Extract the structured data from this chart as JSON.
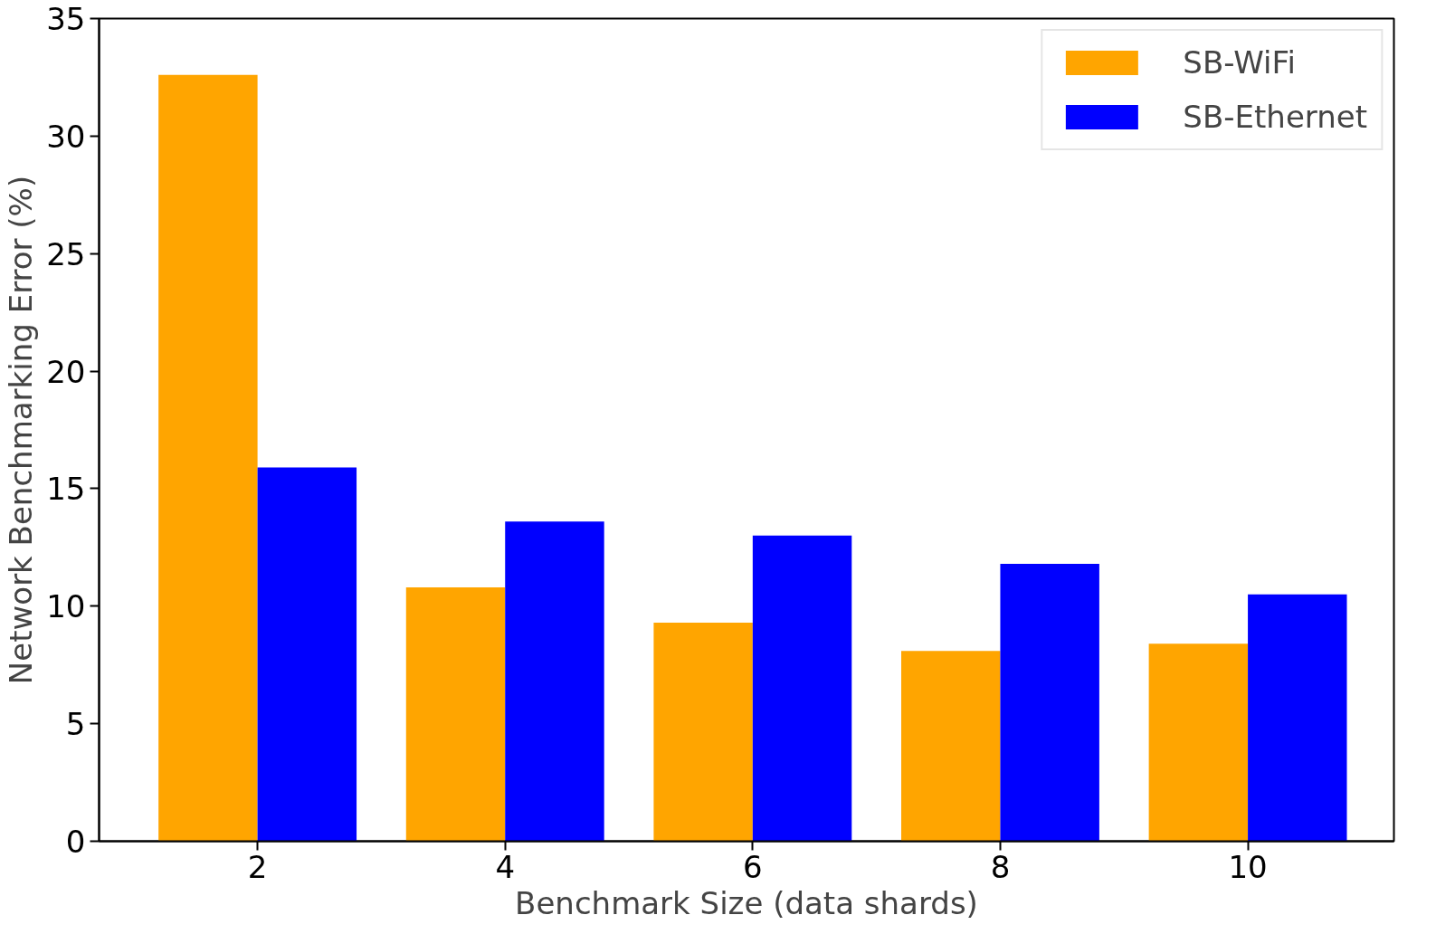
{
  "chart_data": {
    "type": "bar",
    "xlabel": "Benchmark Size (data shards)",
    "ylabel": "Network Benchmarking Error (%)",
    "categories": [
      "2",
      "4",
      "6",
      "8",
      "10"
    ],
    "series": [
      {
        "name": "SB-WiFi",
        "color": "#ffa500",
        "values": [
          32.6,
          10.8,
          9.3,
          8.1,
          8.4
        ]
      },
      {
        "name": "SB-Ethernet",
        "color": "#0000ff",
        "values": [
          15.9,
          13.6,
          13.0,
          11.8,
          10.5
        ]
      }
    ],
    "ylim": [
      0,
      35
    ],
    "yticks": [
      0,
      5,
      10,
      15,
      20,
      25,
      30,
      35
    ],
    "grid": false,
    "legend": "top right"
  }
}
